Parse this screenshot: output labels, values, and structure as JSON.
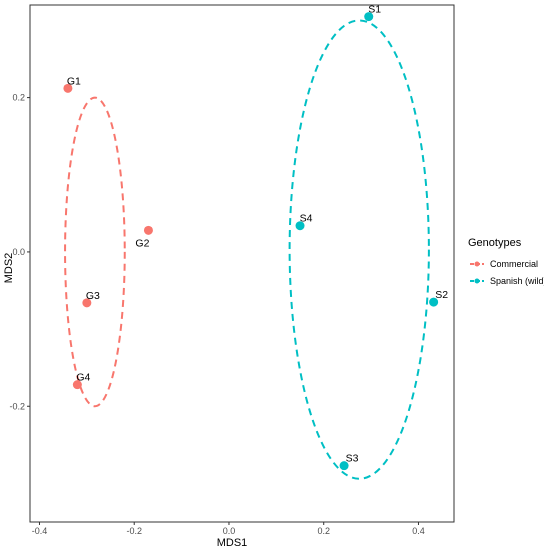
{
  "chart_data": {
    "type": "scatter",
    "xlabel": "MDS1",
    "ylabel": "MDS2",
    "xlim": [
      -0.42,
      0.475
    ],
    "ylim": [
      -0.35,
      0.32
    ],
    "x_ticks": [
      -0.4,
      -0.2,
      0.0,
      0.2,
      0.4
    ],
    "x_tick_labels": [
      "-0.4",
      "-0.2",
      "0.0",
      "0.2",
      "0.4"
    ],
    "y_ticks": [
      -0.2,
      0.0,
      0.2
    ],
    "y_tick_labels": [
      "-0.2",
      "0.0",
      "0.2"
    ],
    "grid": false,
    "legend": {
      "title": "Genotypes",
      "placement": "right",
      "entries": [
        "Commercial",
        "Spanish (wild)"
      ]
    },
    "colors": {
      "Commercial": "#F8766D",
      "Spanish (wild)": "#00BFC4"
    },
    "series": [
      {
        "name": "Commercial",
        "color": "#F8766D",
        "points": [
          {
            "label": "G1",
            "x": -0.34,
            "y": 0.212
          },
          {
            "label": "G2",
            "x": -0.17,
            "y": 0.028
          },
          {
            "label": "G3",
            "x": -0.3,
            "y": -0.066
          },
          {
            "label": "G4",
            "x": -0.32,
            "y": -0.172
          }
        ],
        "ellipse": {
          "cx": -0.283,
          "cy": 0.0,
          "rx": 0.063,
          "ry": 0.2
        }
      },
      {
        "name": "Spanish (wild)",
        "color": "#00BFC4",
        "points": [
          {
            "label": "S1",
            "x": 0.295,
            "y": 0.305
          },
          {
            "label": "S2",
            "x": 0.432,
            "y": -0.065
          },
          {
            "label": "S3",
            "x": 0.243,
            "y": -0.277
          },
          {
            "label": "S4",
            "x": 0.15,
            "y": 0.034
          }
        ],
        "ellipse": {
          "cx": 0.275,
          "cy": 0.003,
          "rx": 0.147,
          "ry": 0.297
        }
      }
    ]
  }
}
